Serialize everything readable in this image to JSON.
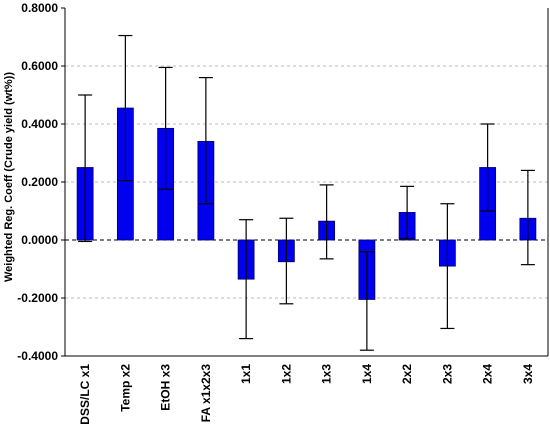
{
  "chart_data": {
    "type": "bar",
    "title": "",
    "xlabel": "",
    "ylabel": "Weighted Reg. Coeff (Crude yield (wt%))",
    "ylim": [
      -0.4,
      0.8
    ],
    "y_ticks": [
      0.8,
      0.6,
      0.4,
      0.2,
      0.0,
      -0.2,
      -0.4
    ],
    "y_tick_labels": [
      "0.8000",
      "0.6000",
      "0.4000",
      "0.2000",
      "0.0000",
      "-0.2000",
      "-0.4000"
    ],
    "grid": true,
    "legend": "none",
    "categories": [
      "DSS/LC x1",
      "Temp x2",
      "EtOH x3",
      "FA x1x2x3",
      "1x1",
      "1x2",
      "1x3",
      "1x4",
      "2x2",
      "2x3",
      "2x4",
      "3x4"
    ],
    "values": [
      0.25,
      0.455,
      0.385,
      0.34,
      -0.135,
      -0.075,
      0.065,
      -0.205,
      0.095,
      -0.09,
      0.25,
      0.075
    ],
    "error_low": [
      -0.005,
      0.205,
      0.175,
      0.125,
      -0.34,
      -0.22,
      -0.065,
      -0.38,
      0.005,
      -0.305,
      0.1,
      -0.085
    ],
    "error_high": [
      0.5,
      0.705,
      0.595,
      0.56,
      0.07,
      0.075,
      0.19,
      -0.04,
      0.185,
      0.125,
      0.4,
      0.24
    ],
    "colors": {
      "bar_fill": "#0000ee",
      "bar_stroke": "#000066",
      "grid": "#bbbbbb",
      "axis": "#000000",
      "error_bar": "#000000"
    }
  }
}
